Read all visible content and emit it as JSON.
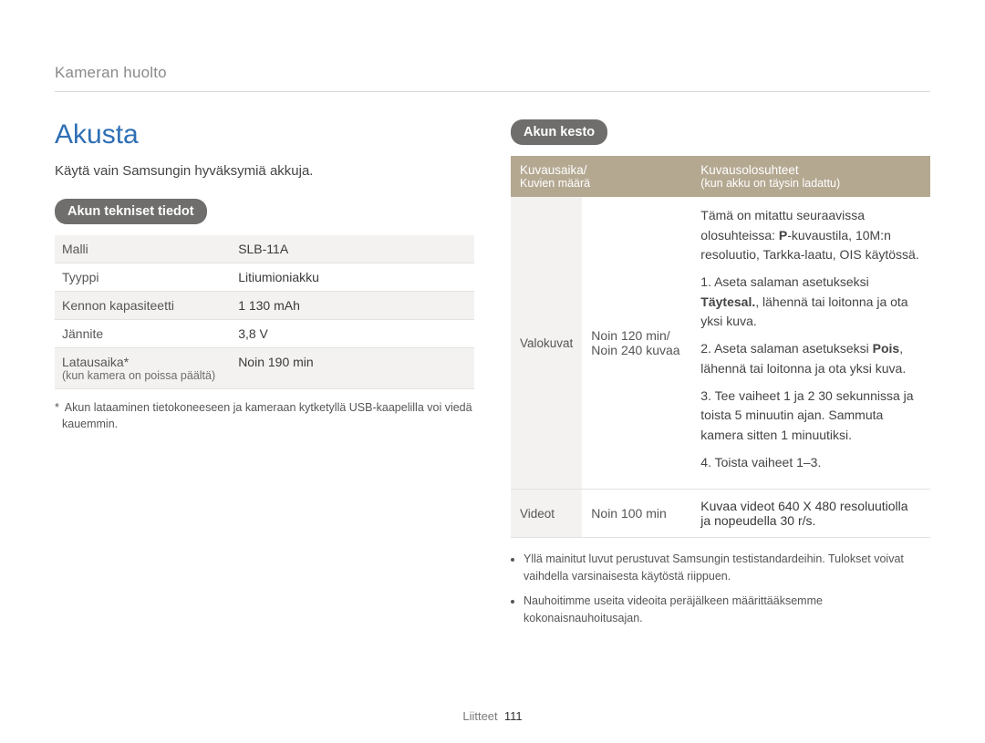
{
  "breadcrumb": "Kameran huolto",
  "title": "Akusta",
  "intro": "Käytä vain Samsungin hyväksymiä akkuja.",
  "spec_heading": "Akun tekniset tiedot",
  "spec_rows": [
    {
      "key": "Malli",
      "sub": "",
      "val": "SLB-11A"
    },
    {
      "key": "Tyyppi",
      "sub": "",
      "val": "Litiumioniakku"
    },
    {
      "key": "Kennon kapasiteetti",
      "sub": "",
      "val": "1 130 mAh"
    },
    {
      "key": "Jännite",
      "sub": "",
      "val": "3,8 V"
    },
    {
      "key": "Latausaika*",
      "sub": "(kun kamera on poissa päältä)",
      "val": "Noin 190 min"
    }
  ],
  "spec_footnote": "Akun lataaminen tietokoneeseen ja kameraan kytketyllä USB-kaapelilla voi viedä kauemmin.",
  "dur_heading": "Akun kesto",
  "cond_headers": {
    "left_top": "Kuvausaika/",
    "left_sub": "Kuvien määrä",
    "right_top": "Kuvausolosuhteet",
    "right_sub": "(kun akku on täysin ladattu)"
  },
  "photos_row": {
    "label": "Valokuvat",
    "mid_line1": "Noin 120 min/",
    "mid_line2": "Noin 240 kuvaa",
    "para_intro_a": "Tämä on mitattu seuraavissa olosuhteissa: ",
    "para_intro_b": "-kuvaustila, 10M:n resoluutio, Tarkka-laatu, OIS käytössä.",
    "p_symbol": "P",
    "step1_a": "1. Aseta salaman asetukseksi ",
    "step1_bold": "Täytesal.",
    "step1_b": ", lähennä tai loitonna ja ota yksi kuva.",
    "step2_a": "2. Aseta salaman asetukseksi ",
    "step2_bold": "Pois",
    "step2_b": ", lähennä tai loitonna ja ota yksi kuva.",
    "step3": "3. Tee vaiheet 1 ja 2 30 sekunnissa ja toista 5 minuutin ajan. Sammuta kamera sitten 1 minuutiksi.",
    "step4": "4. Toista vaiheet 1–3."
  },
  "videos_row": {
    "label": "Videot",
    "mid": "Noin 100 min",
    "text": "Kuvaa videot 640 X 480 resoluutiolla ja nopeudella 30 r/s."
  },
  "bullets": [
    "Yllä mainitut luvut perustuvat Samsungin testistandardeihin. Tulokset voivat vaihdella varsinaisesta käytöstä riippuen.",
    "Nauhoitimme useita videoita peräjälkeen määrittääksemme kokonaisnauhoitusajan."
  ],
  "footer_label": "Liitteet",
  "footer_page": "111",
  "colors": {
    "title": "#2e6fb5",
    "pill_bg": "#6f6e6c",
    "th_bg": "#b4a891",
    "row_alt": "#f3f2f0",
    "border": "#e2e2e2"
  }
}
